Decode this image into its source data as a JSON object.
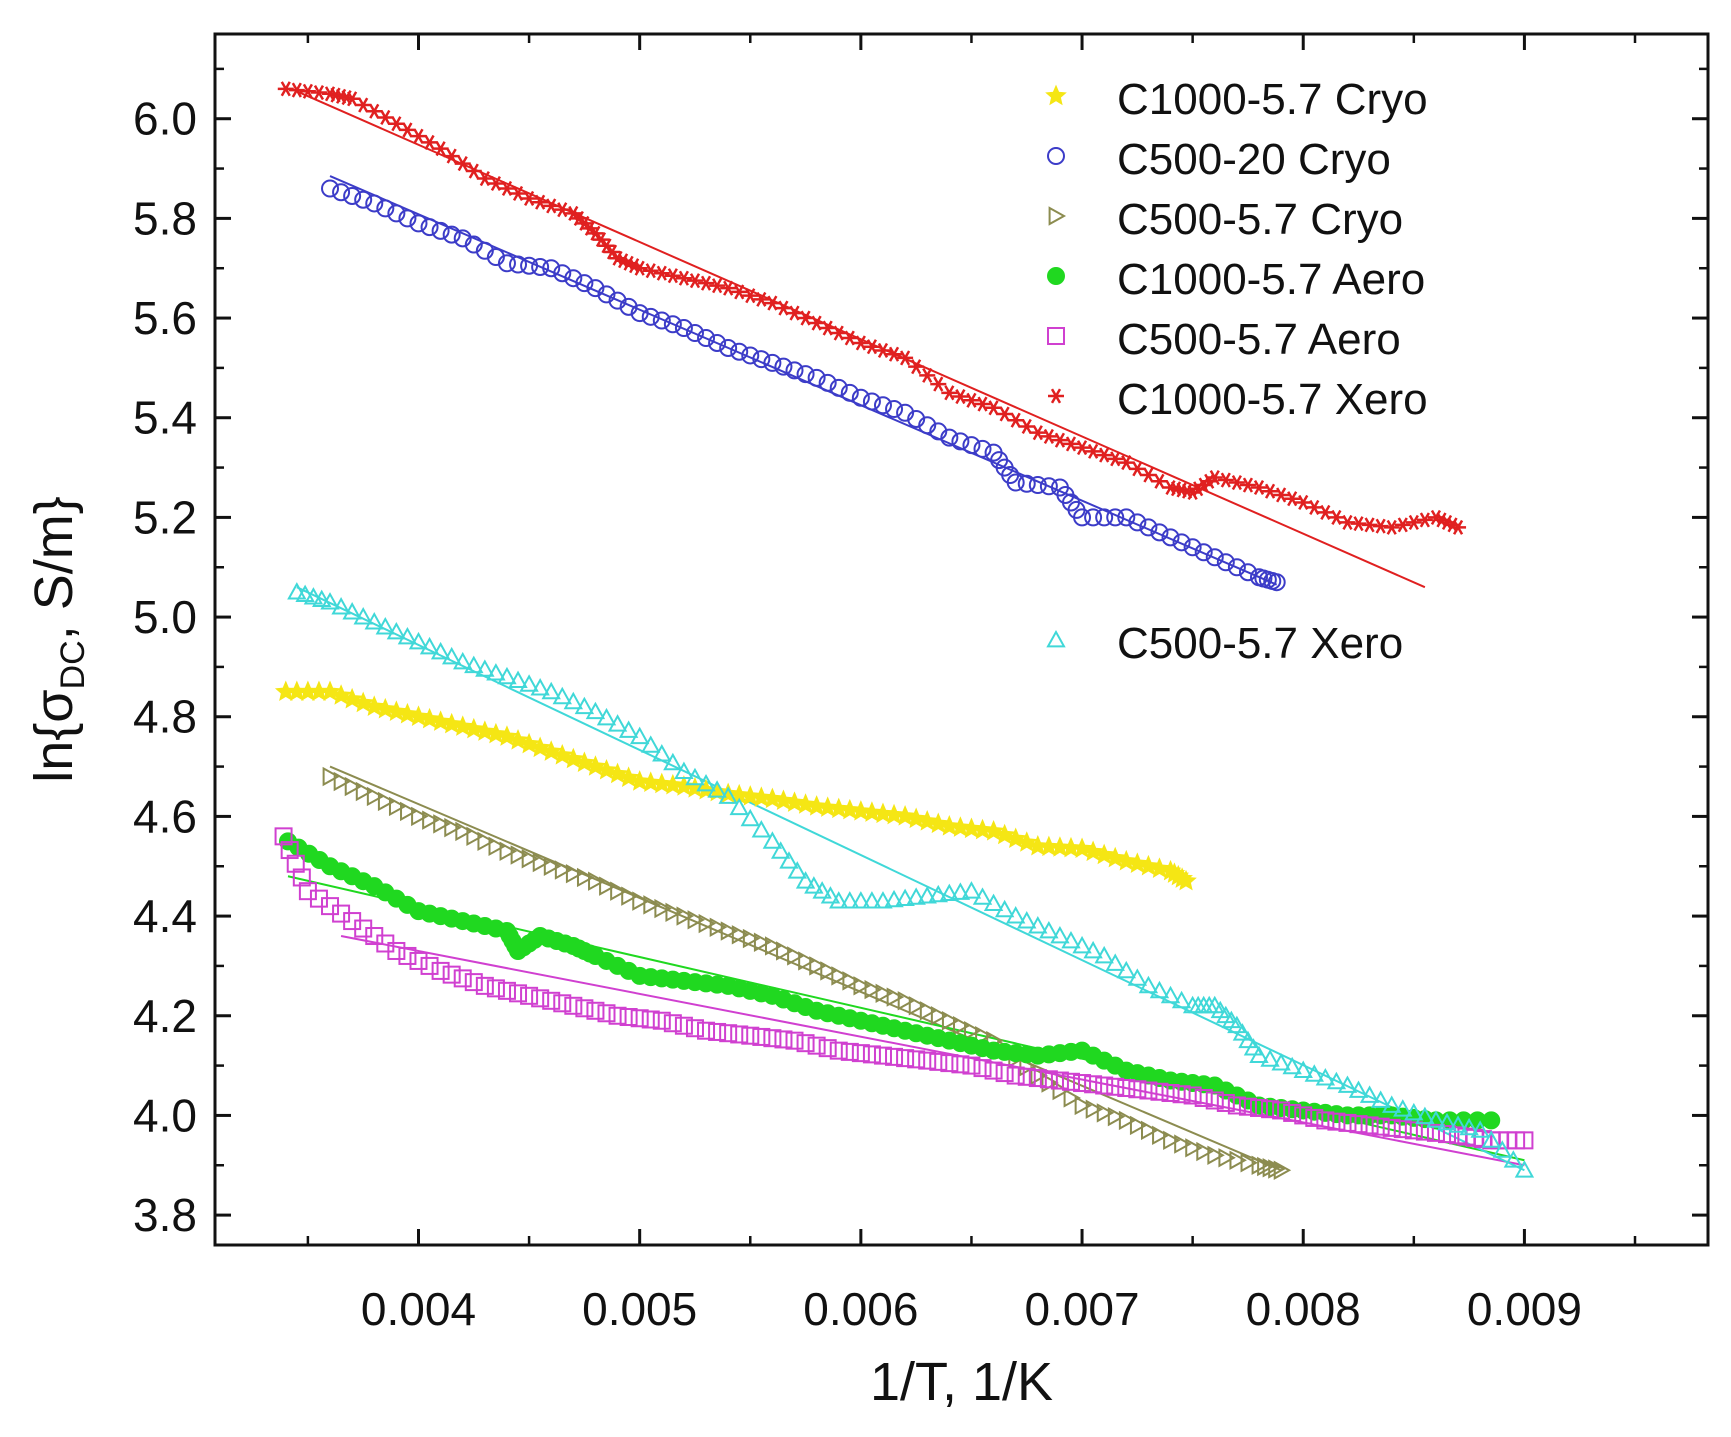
{
  "chart_data": {
    "type": "scatter",
    "title": "",
    "xlabel": "1/T, 1/K",
    "ylabel": {
      "prefix": "ln{σ",
      "subscript": "DC",
      "suffix": ", S/m}"
    },
    "xlim": [
      0.00308,
      0.00983
    ],
    "ylim": [
      3.74,
      6.17
    ],
    "x_ticks": [
      {
        "value": 0.004,
        "label": "0.004"
      },
      {
        "value": 0.005,
        "label": "0.005"
      },
      {
        "value": 0.006,
        "label": "0.006"
      },
      {
        "value": 0.007,
        "label": "0.007"
      },
      {
        "value": 0.008,
        "label": "0.008"
      },
      {
        "value": 0.009,
        "label": "0.009"
      }
    ],
    "y_ticks": [
      {
        "value": 3.8,
        "label": "3.8"
      },
      {
        "value": 4.0,
        "label": "4.0"
      },
      {
        "value": 4.2,
        "label": "4.2"
      },
      {
        "value": 4.4,
        "label": "4.4"
      },
      {
        "value": 4.6,
        "label": "4.6"
      },
      {
        "value": 4.8,
        "label": "4.8"
      },
      {
        "value": 5.0,
        "label": "5.0"
      },
      {
        "value": 5.2,
        "label": "5.2"
      },
      {
        "value": 5.4,
        "label": "5.4"
      },
      {
        "value": 5.6,
        "label": "5.6"
      },
      {
        "value": 5.8,
        "label": "5.8"
      },
      {
        "value": 6.0,
        "label": "6.0"
      }
    ],
    "legend_position": "top-right",
    "series": [
      {
        "name": "C1000-5.7 Cryo",
        "color": "#f5e614",
        "marker": "star",
        "filled": true,
        "points": [
          [
            0.0034,
            4.85
          ],
          [
            0.0036,
            4.85
          ],
          [
            0.0038,
            4.82
          ],
          [
            0.004,
            4.8
          ],
          [
            0.0042,
            4.78
          ],
          [
            0.0044,
            4.76
          ],
          [
            0.0046,
            4.73
          ],
          [
            0.0048,
            4.7
          ],
          [
            0.005,
            4.67
          ],
          [
            0.0052,
            4.66
          ],
          [
            0.0054,
            4.645
          ],
          [
            0.0056,
            4.635
          ],
          [
            0.0058,
            4.62
          ],
          [
            0.006,
            4.61
          ],
          [
            0.0062,
            4.6
          ],
          [
            0.0064,
            4.58
          ],
          [
            0.0066,
            4.57
          ],
          [
            0.0068,
            4.54
          ],
          [
            0.007,
            4.535
          ],
          [
            0.0072,
            4.51
          ],
          [
            0.0074,
            4.49
          ],
          [
            0.00747,
            4.47
          ]
        ],
        "fit": null
      },
      {
        "name": "C500-20 Cryo",
        "color": "#3c3cc8",
        "marker": "circle",
        "filled": false,
        "points": [
          [
            0.0036,
            5.86
          ],
          [
            0.0038,
            5.83
          ],
          [
            0.004,
            5.79
          ],
          [
            0.0042,
            5.76
          ],
          [
            0.0044,
            5.71
          ],
          [
            0.0046,
            5.7
          ],
          [
            0.0048,
            5.66
          ],
          [
            0.005,
            5.61
          ],
          [
            0.0052,
            5.58
          ],
          [
            0.0054,
            5.54
          ],
          [
            0.0056,
            5.51
          ],
          [
            0.0058,
            5.48
          ],
          [
            0.006,
            5.44
          ],
          [
            0.0062,
            5.41
          ],
          [
            0.0064,
            5.36
          ],
          [
            0.0066,
            5.33
          ],
          [
            0.0067,
            5.27
          ],
          [
            0.0069,
            5.26
          ],
          [
            0.007,
            5.2
          ],
          [
            0.0072,
            5.2
          ],
          [
            0.0074,
            5.16
          ],
          [
            0.0076,
            5.12
          ],
          [
            0.0078,
            5.08
          ],
          [
            0.00788,
            5.07
          ]
        ],
        "fit": [
          [
            0.0036,
            5.885
          ],
          [
            0.00788,
            5.065
          ]
        ]
      },
      {
        "name": "C500-5.7 Cryo",
        "color": "#8c8c50",
        "marker": "triangle-right",
        "filled": false,
        "points": [
          [
            0.0036,
            4.68
          ],
          [
            0.0038,
            4.64
          ],
          [
            0.004,
            4.6
          ],
          [
            0.0042,
            4.57
          ],
          [
            0.0044,
            4.53
          ],
          [
            0.0046,
            4.5
          ],
          [
            0.0048,
            4.47
          ],
          [
            0.005,
            4.43
          ],
          [
            0.0052,
            4.4
          ],
          [
            0.0054,
            4.37
          ],
          [
            0.0056,
            4.34
          ],
          [
            0.0058,
            4.3
          ],
          [
            0.006,
            4.26
          ],
          [
            0.0062,
            4.23
          ],
          [
            0.0064,
            4.19
          ],
          [
            0.0066,
            4.15
          ],
          [
            0.0068,
            4.08
          ],
          [
            0.007,
            4.02
          ],
          [
            0.0072,
            3.99
          ],
          [
            0.0074,
            3.95
          ],
          [
            0.0076,
            3.92
          ],
          [
            0.0078,
            3.9
          ],
          [
            0.0079,
            3.89
          ]
        ],
        "fit": [
          [
            0.0036,
            4.7
          ],
          [
            0.0079,
            3.89
          ]
        ]
      },
      {
        "name": "C1000-5.7 Aero",
        "color": "#20d820",
        "marker": "circle",
        "filled": true,
        "points": [
          [
            0.00341,
            4.55
          ],
          [
            0.0036,
            4.5
          ],
          [
            0.0038,
            4.46
          ],
          [
            0.004,
            4.41
          ],
          [
            0.0042,
            4.39
          ],
          [
            0.0044,
            4.37
          ],
          [
            0.00445,
            4.33
          ],
          [
            0.00455,
            4.36
          ],
          [
            0.0047,
            4.34
          ],
          [
            0.0048,
            4.32
          ],
          [
            0.005,
            4.28
          ],
          [
            0.0052,
            4.27
          ],
          [
            0.0054,
            4.26
          ],
          [
            0.0056,
            4.24
          ],
          [
            0.0058,
            4.21
          ],
          [
            0.006,
            4.19
          ],
          [
            0.0062,
            4.17
          ],
          [
            0.0064,
            4.15
          ],
          [
            0.0066,
            4.13
          ],
          [
            0.0068,
            4.12
          ],
          [
            0.007,
            4.13
          ],
          [
            0.0072,
            4.09
          ],
          [
            0.0074,
            4.07
          ],
          [
            0.0076,
            4.06
          ],
          [
            0.0078,
            4.02
          ],
          [
            0.008,
            4.01
          ],
          [
            0.0082,
            4.0
          ],
          [
            0.0084,
            4.0
          ],
          [
            0.0086,
            3.99
          ],
          [
            0.00885,
            3.99
          ]
        ],
        "fit": [
          [
            0.00341,
            4.48
          ],
          [
            0.009,
            3.91
          ]
        ]
      },
      {
        "name": "C500-5.7 Aero",
        "color": "#d040d0",
        "marker": "square",
        "filled": false,
        "points": [
          [
            0.00339,
            4.56
          ],
          [
            0.0035,
            4.45
          ],
          [
            0.0037,
            4.39
          ],
          [
            0.0039,
            4.33
          ],
          [
            0.0041,
            4.29
          ],
          [
            0.0043,
            4.26
          ],
          [
            0.0045,
            4.24
          ],
          [
            0.0047,
            4.22
          ],
          [
            0.0049,
            4.2
          ],
          [
            0.0051,
            4.19
          ],
          [
            0.0053,
            4.17
          ],
          [
            0.0055,
            4.16
          ],
          [
            0.0057,
            4.15
          ],
          [
            0.0059,
            4.13
          ],
          [
            0.0061,
            4.12
          ],
          [
            0.0063,
            4.11
          ],
          [
            0.0065,
            4.1
          ],
          [
            0.0067,
            4.08
          ],
          [
            0.0069,
            4.07
          ],
          [
            0.0071,
            4.06
          ],
          [
            0.0073,
            4.05
          ],
          [
            0.0075,
            4.04
          ],
          [
            0.0077,
            4.02
          ],
          [
            0.0079,
            4.01
          ],
          [
            0.0081,
            3.99
          ],
          [
            0.0083,
            3.98
          ],
          [
            0.0085,
            3.97
          ],
          [
            0.0087,
            3.96
          ],
          [
            0.00885,
            3.95
          ],
          [
            0.009,
            3.95
          ]
        ],
        "fit": [
          [
            0.00365,
            4.36
          ],
          [
            0.009,
            3.9
          ]
        ]
      },
      {
        "name": "C1000-5.7 Xero",
        "color": "#e02020",
        "marker": "asterisk",
        "filled": true,
        "points": [
          [
            0.0034,
            6.06
          ],
          [
            0.0036,
            6.05
          ],
          [
            0.0037,
            6.04
          ],
          [
            0.0039,
            5.99
          ],
          [
            0.0041,
            5.94
          ],
          [
            0.0043,
            5.88
          ],
          [
            0.0045,
            5.84
          ],
          [
            0.0047,
            5.81
          ],
          [
            0.0048,
            5.77
          ],
          [
            0.0049,
            5.72
          ],
          [
            0.005,
            5.7
          ],
          [
            0.0052,
            5.68
          ],
          [
            0.0054,
            5.66
          ],
          [
            0.0056,
            5.63
          ],
          [
            0.0058,
            5.59
          ],
          [
            0.006,
            5.55
          ],
          [
            0.0062,
            5.52
          ],
          [
            0.0064,
            5.45
          ],
          [
            0.0066,
            5.42
          ],
          [
            0.0068,
            5.37
          ],
          [
            0.007,
            5.34
          ],
          [
            0.0072,
            5.31
          ],
          [
            0.0074,
            5.26
          ],
          [
            0.0075,
            5.25
          ],
          [
            0.0076,
            5.28
          ],
          [
            0.0078,
            5.26
          ],
          [
            0.008,
            5.23
          ],
          [
            0.0082,
            5.19
          ],
          [
            0.0084,
            5.18
          ],
          [
            0.0086,
            5.2
          ],
          [
            0.0087,
            5.18
          ]
        ],
        "fit": [
          [
            0.00345,
            6.055
          ],
          [
            0.00855,
            5.06
          ]
        ]
      },
      {
        "name": "C500-5.7 Xero",
        "color": "#40d8d8",
        "marker": "triangle-up",
        "filled": false,
        "points": [
          [
            0.00345,
            5.05
          ],
          [
            0.0036,
            5.03
          ],
          [
            0.0038,
            4.99
          ],
          [
            0.004,
            4.95
          ],
          [
            0.0042,
            4.91
          ],
          [
            0.0044,
            4.88
          ],
          [
            0.0046,
            4.85
          ],
          [
            0.0048,
            4.81
          ],
          [
            0.005,
            4.76
          ],
          [
            0.0052,
            4.69
          ],
          [
            0.0054,
            4.64
          ],
          [
            0.0056,
            4.55
          ],
          [
            0.00575,
            4.47
          ],
          [
            0.0059,
            4.43
          ],
          [
            0.0061,
            4.43
          ],
          [
            0.0063,
            4.44
          ],
          [
            0.0065,
            4.45
          ],
          [
            0.0067,
            4.4
          ],
          [
            0.0069,
            4.36
          ],
          [
            0.0071,
            4.32
          ],
          [
            0.0073,
            4.26
          ],
          [
            0.0075,
            4.22
          ],
          [
            0.0076,
            4.22
          ],
          [
            0.0077,
            4.18
          ],
          [
            0.0078,
            4.12
          ],
          [
            0.008,
            4.09
          ],
          [
            0.0082,
            4.06
          ],
          [
            0.0084,
            4.02
          ],
          [
            0.0086,
            3.99
          ],
          [
            0.0088,
            3.97
          ],
          [
            0.009,
            3.89
          ]
        ],
        "fit": [
          [
            0.00345,
            5.06
          ],
          [
            0.009,
            3.89
          ]
        ]
      }
    ]
  }
}
